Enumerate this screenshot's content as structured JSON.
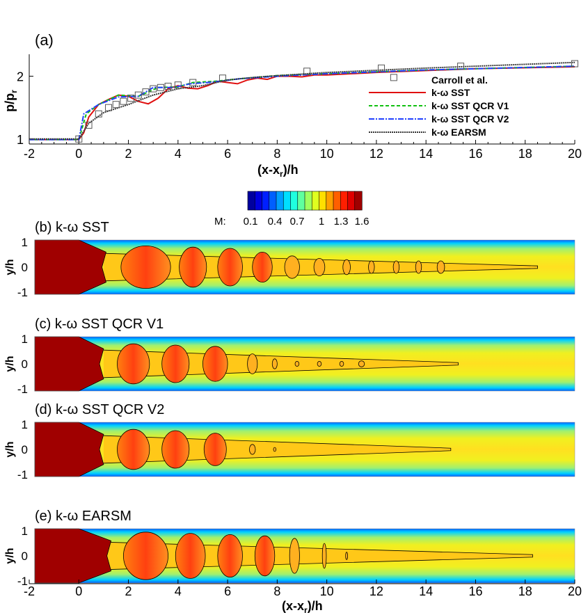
{
  "chart_data": [
    {
      "type": "line",
      "panel_label": "(a)",
      "xlabel": "(x-x_r)/h",
      "xlabel_main": "(x-x",
      "xlabel_sub": "r",
      "xlabel_tail": ")/h",
      "ylabel_main": "p/p",
      "ylabel_sub": "r",
      "xlim": [
        -2,
        20
      ],
      "ylim": [
        0.92,
        2.35
      ],
      "xticks": [
        "-2",
        "0",
        "2",
        "4",
        "6",
        "8",
        "10",
        "12",
        "14",
        "16",
        "18",
        "20"
      ],
      "yticks": [
        "1",
        "2"
      ],
      "legend_position": "right",
      "experiment": {
        "name": "Carroll et al.",
        "points": [
          [
            0,
            1.0
          ],
          [
            0.4,
            1.22
          ],
          [
            0.8,
            1.4
          ],
          [
            1.2,
            1.5
          ],
          [
            1.5,
            1.55
          ],
          [
            1.8,
            1.6
          ],
          [
            2.1,
            1.65
          ],
          [
            2.4,
            1.7
          ],
          [
            2.7,
            1.75
          ],
          [
            3.0,
            1.8
          ],
          [
            3.3,
            1.82
          ],
          [
            3.6,
            1.84
          ],
          [
            4.0,
            1.86
          ],
          [
            4.6,
            1.9
          ],
          [
            5.8,
            1.97
          ],
          [
            9.2,
            2.08
          ],
          [
            12.2,
            2.13
          ],
          [
            15.4,
            2.16
          ],
          [
            20,
            2.2
          ]
        ]
      },
      "series": [
        {
          "name": "k-ω SST",
          "color": "#e01010",
          "dash": "",
          "points": [
            [
              -2,
              0.99
            ],
            [
              0,
              0.99
            ],
            [
              0.2,
              1.1
            ],
            [
              0.4,
              1.35
            ],
            [
              0.8,
              1.55
            ],
            [
              1.2,
              1.63
            ],
            [
              1.6,
              1.7
            ],
            [
              2.0,
              1.68
            ],
            [
              2.4,
              1.6
            ],
            [
              2.8,
              1.56
            ],
            [
              3.2,
              1.65
            ],
            [
              3.6,
              1.8
            ],
            [
              4.0,
              1.85
            ],
            [
              4.4,
              1.81
            ],
            [
              4.8,
              1.8
            ],
            [
              5.2,
              1.85
            ],
            [
              5.6,
              1.92
            ],
            [
              6.0,
              1.9
            ],
            [
              6.4,
              1.88
            ],
            [
              6.8,
              1.94
            ],
            [
              7.2,
              1.97
            ],
            [
              7.6,
              1.95
            ],
            [
              8,
              2.0
            ],
            [
              8.5,
              2.0
            ],
            [
              9,
              1.99
            ],
            [
              9.5,
              2.02
            ],
            [
              10,
              2.02
            ],
            [
              12,
              2.06
            ],
            [
              16,
              2.12
            ],
            [
              20,
              2.15
            ]
          ]
        },
        {
          "name": "k-ω SST QCR V1",
          "color": "#10c010",
          "dash": "5,3",
          "points": [
            [
              -2,
              0.99
            ],
            [
              0,
              0.99
            ],
            [
              0.3,
              1.4
            ],
            [
              0.8,
              1.55
            ],
            [
              1.6,
              1.7
            ],
            [
              2.4,
              1.68
            ],
            [
              3.2,
              1.82
            ],
            [
              4,
              1.83
            ],
            [
              4.6,
              1.9
            ],
            [
              5.5,
              1.92
            ],
            [
              6.5,
              1.96
            ],
            [
              8,
              2.01
            ],
            [
              10,
              2.04
            ],
            [
              14,
              2.1
            ],
            [
              20,
              2.16
            ]
          ]
        },
        {
          "name": "k-ω SST QCR V2",
          "color": "#2040ff",
          "dash": "8,2,2,2",
          "points": [
            [
              -2,
              0.99
            ],
            [
              0,
              0.99
            ],
            [
              0.2,
              1.4
            ],
            [
              0.8,
              1.55
            ],
            [
              1.6,
              1.67
            ],
            [
              2.4,
              1.68
            ],
            [
              3.0,
              1.82
            ],
            [
              3.8,
              1.82
            ],
            [
              4.5,
              1.88
            ],
            [
              5.5,
              1.91
            ],
            [
              6.5,
              1.96
            ],
            [
              8,
              2.0
            ],
            [
              10,
              2.04
            ],
            [
              14,
              2.1
            ],
            [
              20,
              2.16
            ]
          ]
        },
        {
          "name": "k-ω EARSM",
          "color": "#333333",
          "dash": "2,1",
          "points": [
            [
              -2,
              1.0
            ],
            [
              0,
              1.0
            ],
            [
              0.4,
              1.25
            ],
            [
              1,
              1.42
            ],
            [
              2,
              1.55
            ],
            [
              3,
              1.7
            ],
            [
              4,
              1.8
            ],
            [
              5,
              1.85
            ],
            [
              6,
              1.94
            ],
            [
              7,
              1.98
            ],
            [
              8,
              2.01
            ],
            [
              10,
              2.06
            ],
            [
              14,
              2.13
            ],
            [
              20,
              2.22
            ]
          ]
        }
      ]
    },
    {
      "type": "heatmap",
      "colorbar": {
        "label": "M:",
        "ticks": [
          "0.1",
          "0.4",
          "0.7",
          "1",
          "1.3",
          "1.6"
        ],
        "range": [
          0,
          1.7
        ],
        "levels": 16
      },
      "ylabel": "y/h",
      "yticks": [
        "1",
        "0",
        "-1"
      ],
      "xticks": [
        "-2",
        "0",
        "2",
        "4",
        "6",
        "8",
        "10",
        "12",
        "14",
        "16",
        "18",
        "20"
      ],
      "xlabel_main": "(x-x",
      "xlabel_sub": "r",
      "xlabel_tail": ")/h",
      "panels": [
        {
          "title": "(b) k-ω SST",
          "core_end": 1.1,
          "jet_end": 18.5,
          "cells": [
            [
              2.7,
              1.0,
              0.85
            ],
            [
              4.6,
              0.55,
              0.8
            ],
            [
              6.1,
              0.5,
              0.75
            ],
            [
              7.4,
              0.4,
              0.6
            ],
            [
              8.6,
              0.3,
              0.45
            ],
            [
              9.7,
              0.22,
              0.35
            ],
            [
              10.8,
              0.15,
              0.3
            ],
            [
              11.8,
              0.12,
              0.25
            ],
            [
              12.8,
              0.12,
              0.25
            ],
            [
              13.7,
              0.12,
              0.25
            ],
            [
              14.6,
              0.15,
              0.25
            ]
          ]
        },
        {
          "title": "(c) k-ω SST QCR V1",
          "core_end": 1.0,
          "jet_end": 15.3,
          "cells": [
            [
              2.2,
              0.65,
              0.8
            ],
            [
              3.9,
              0.55,
              0.75
            ],
            [
              5.5,
              0.5,
              0.7
            ],
            [
              7.0,
              0.2,
              0.4
            ],
            [
              7.9,
              0.1,
              0.2
            ],
            [
              8.8,
              0.08,
              0.1
            ],
            [
              9.7,
              0.08,
              0.1
            ],
            [
              10.6,
              0.08,
              0.1
            ],
            [
              11.4,
              0.12,
              0.12
            ]
          ]
        },
        {
          "title": "(d) k-ω SST QCR V2",
          "core_end": 1.0,
          "jet_end": 15.0,
          "cells": [
            [
              2.2,
              0.65,
              0.8
            ],
            [
              3.9,
              0.55,
              0.75
            ],
            [
              5.5,
              0.45,
              0.65
            ],
            [
              7.0,
              0.12,
              0.2
            ],
            [
              7.9,
              0.05,
              0.08
            ]
          ]
        },
        {
          "title": "(e) k-ω EARSM",
          "core_end": 1.3,
          "jet_end": 18.3,
          "cells": [
            [
              2.7,
              0.9,
              0.95
            ],
            [
              4.5,
              0.6,
              0.9
            ],
            [
              6.1,
              0.5,
              0.85
            ],
            [
              7.5,
              0.4,
              0.8
            ],
            [
              8.7,
              0.2,
              0.7
            ],
            [
              9.9,
              0.08,
              0.5
            ],
            [
              10.8,
              0.04,
              0.15
            ]
          ]
        }
      ]
    }
  ]
}
